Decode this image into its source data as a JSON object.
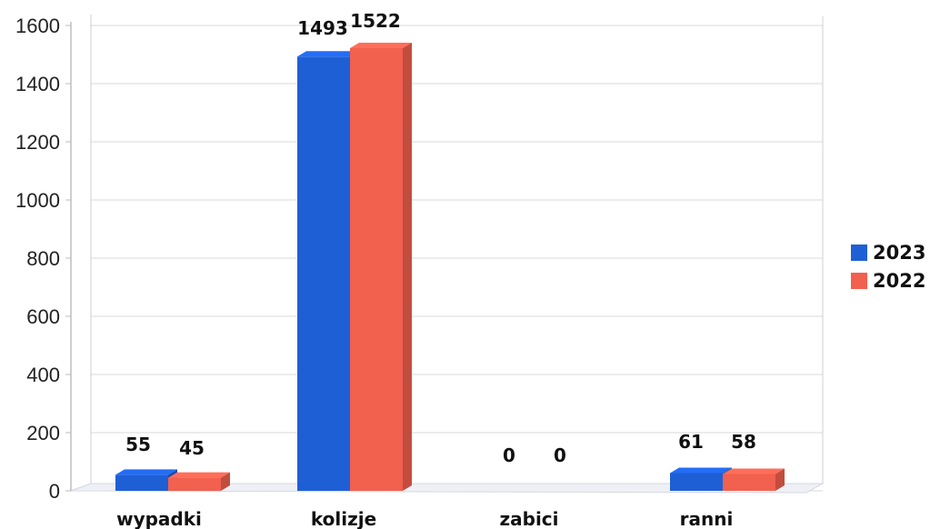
{
  "chart_data": {
    "type": "bar",
    "categories": [
      "wypadki",
      "kolizje",
      "zabici",
      "ranni"
    ],
    "series": [
      {
        "name": "2023",
        "values": [
          55,
          1493,
          0,
          61
        ],
        "color": "#1f5fd6"
      },
      {
        "name": "2022",
        "values": [
          45,
          1522,
          0,
          58
        ],
        "color": "#f2604e"
      }
    ],
    "y_ticks": [
      "0",
      "200",
      "400",
      "600",
      "800",
      "1000",
      "1200",
      "1400",
      "1600"
    ],
    "ylim": [
      0,
      1600
    ],
    "grid": true,
    "legend_position": "right",
    "title": "",
    "xlabel": "",
    "ylabel": ""
  }
}
